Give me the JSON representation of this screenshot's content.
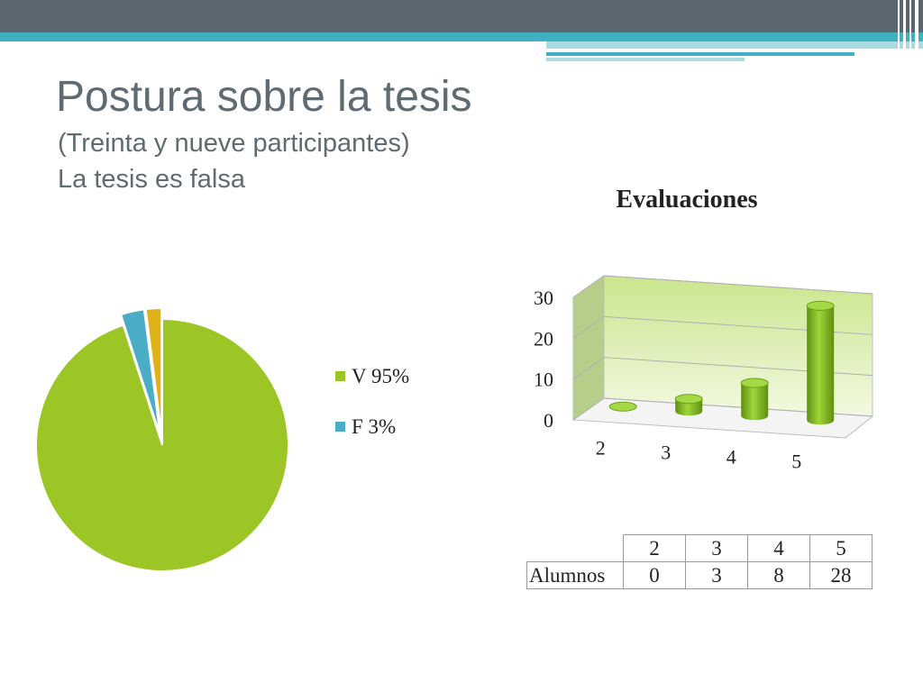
{
  "slide": {
    "title": "Postura sobre la tesis",
    "subtitle": "(Treinta y nueve participantes)",
    "subtitle2": "La tesis es falsa"
  },
  "colors": {
    "topbar": "#5a6770",
    "accent": "#3eb0c0",
    "pie_v": "#9bc625",
    "pie_f": "#4bacc6",
    "pie_other": "#dfb318",
    "bar": "#8cc31f"
  },
  "chart_data": [
    {
      "type": "pie",
      "slices": [
        {
          "label": "V 95%",
          "value": 95,
          "color": "#9bc625"
        },
        {
          "label": "F 3%",
          "value": 3,
          "color": "#4bacc6"
        },
        {
          "label": "",
          "value": 2,
          "color": "#dfb318"
        }
      ],
      "exploded_slices": [
        1,
        2
      ],
      "legend": [
        "V 95%",
        "F 3%"
      ],
      "legend_position": "right"
    },
    {
      "type": "bar",
      "style": "3d-cylinder",
      "title": "Evaluaciones",
      "categories": [
        "2",
        "3",
        "4",
        "5"
      ],
      "series": [
        {
          "name": "Alumnos",
          "values": [
            0,
            3,
            8,
            28
          ]
        }
      ],
      "ylim": [
        0,
        30
      ],
      "yticks": [
        0,
        10,
        20,
        30
      ],
      "grid": true,
      "data_table": {
        "header": [
          "2",
          "3",
          "4",
          "5"
        ],
        "rows": [
          {
            "label": "Alumnos",
            "values": [
              "0",
              "3",
              "8",
              "28"
            ]
          }
        ]
      }
    }
  ]
}
